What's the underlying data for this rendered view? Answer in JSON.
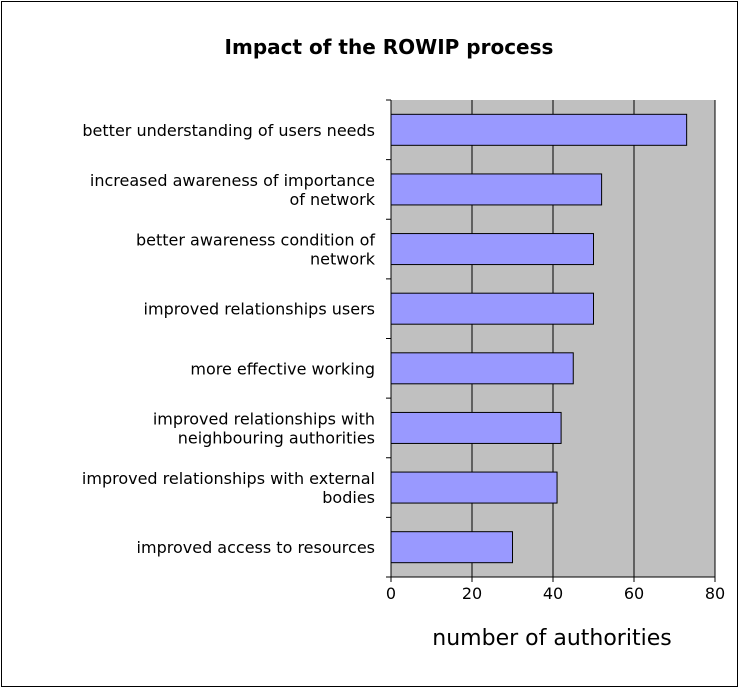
{
  "chart_data": {
    "type": "bar",
    "orientation": "horizontal",
    "title": "Impact of the ROWIP process",
    "xlabel": "number of authorities",
    "ylabel": "",
    "categories": [
      [
        "better understanding of users needs"
      ],
      [
        "increased awareness of importance",
        "of network"
      ],
      [
        "better awareness condition of",
        "network"
      ],
      [
        "improved relationships users"
      ],
      [
        "more effective working"
      ],
      [
        "improved relationships with",
        "neighbouring authorities"
      ],
      [
        "improved relationships with external",
        "bodies"
      ],
      [
        "improved access to resources"
      ]
    ],
    "values": [
      73,
      52,
      50,
      50,
      45,
      42,
      41,
      30
    ],
    "xlim": [
      0,
      80
    ],
    "xticks": [
      0,
      20,
      40,
      60,
      80
    ],
    "grid": true,
    "legend": "none",
    "colors": {
      "plot_background": "#c0c0c0",
      "bar_fill": "#9999ff",
      "bar_stroke": "#000000",
      "gridline": "#000000"
    }
  }
}
